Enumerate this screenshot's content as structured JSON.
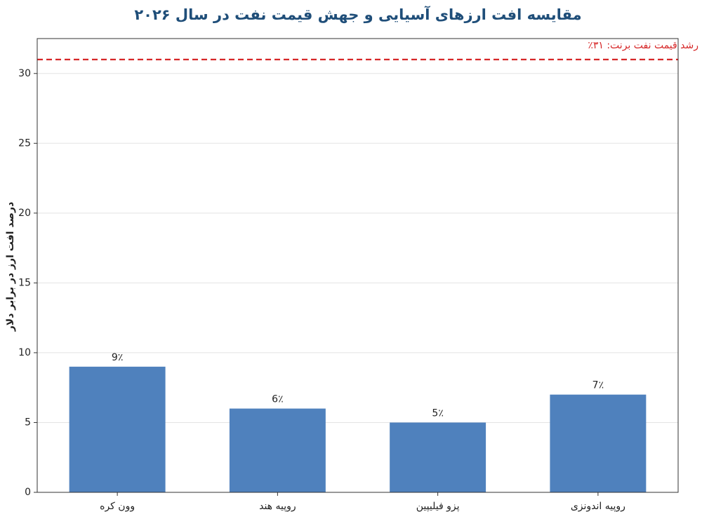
{
  "chart_data": {
    "type": "bar",
    "title": "مقایسه افت ارزهای آسیایی و جهش قیمت نفت در سال ۲۰۲۶",
    "y_label": "درصد افت ارز در برابر دلار",
    "categories": [
      "وون کره",
      "روپیه هند",
      "پزو فیلیپین",
      "روپیه اندونزی"
    ],
    "values": [
      9,
      6,
      5,
      7
    ],
    "value_labels": [
      "9٪",
      "6٪",
      "5٪",
      "7٪"
    ],
    "color": "#4f81bd",
    "ylim": [
      0,
      32.5
    ],
    "yticks": [
      0,
      5,
      10,
      15,
      20,
      25,
      30
    ],
    "grid": true,
    "reference_line": {
      "value": 31,
      "label": "رشد قیمت نفت برنت: ۳۱٪",
      "color": "#d62728"
    }
  }
}
